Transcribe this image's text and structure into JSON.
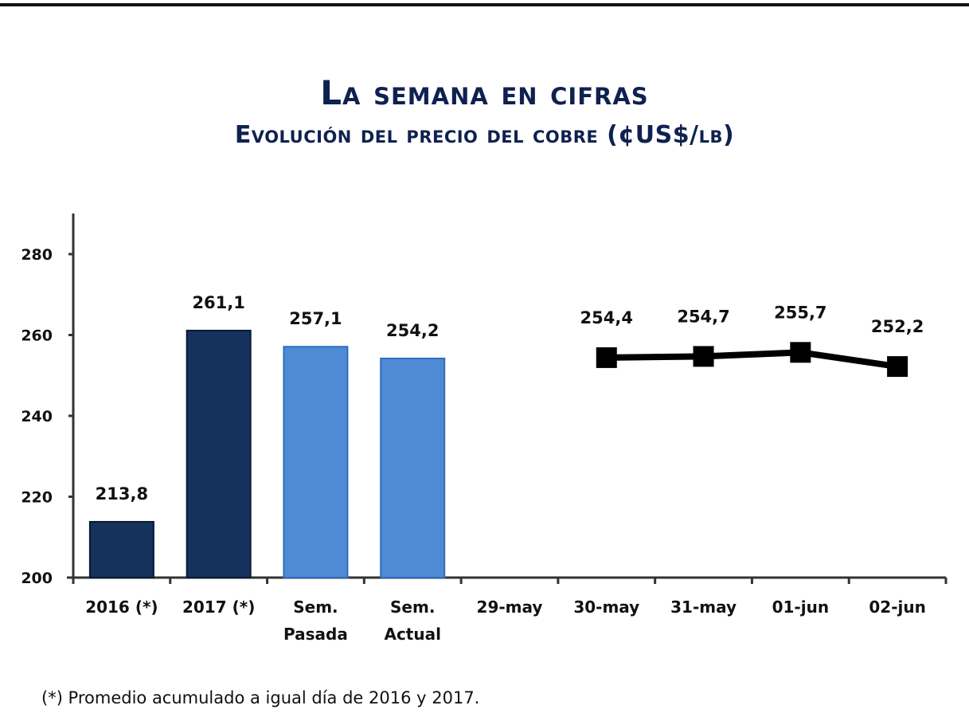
{
  "chart_data": {
    "type": "bar+line",
    "title": "La semana en cifras",
    "subtitle": "Evolución del precio del cobre  (¢US$/lb)",
    "categories": [
      "2016 (*)",
      "2017 (*)",
      "Sem. Pasada",
      "Sem. Actual",
      "29-may",
      "30-may",
      "31-may",
      "01-jun",
      "02-jun"
    ],
    "category_lines": [
      [
        "2016 (*)"
      ],
      [
        "2017 (*)"
      ],
      [
        "Sem.",
        "Pasada"
      ],
      [
        "Sem.",
        "Actual"
      ],
      [
        "29-may"
      ],
      [
        "30-may"
      ],
      [
        "31-may"
      ],
      [
        "01-jun"
      ],
      [
        "02-jun"
      ]
    ],
    "bars": [
      {
        "category": "2016 (*)",
        "value": 213.8,
        "label": "213,8",
        "color": "#14325c"
      },
      {
        "category": "2017 (*)",
        "value": 261.1,
        "label": "261,1",
        "color": "#14325c"
      },
      {
        "category": "Sem. Pasada",
        "value": 257.1,
        "label": "257,1",
        "color": "#4f8ad4"
      },
      {
        "category": "Sem. Actual",
        "value": 254.2,
        "label": "254,2",
        "color": "#4f8ad4"
      }
    ],
    "line": [
      {
        "category": "30-may",
        "value": 254.4,
        "label": "254,4"
      },
      {
        "category": "31-may",
        "value": 254.7,
        "label": "254,7"
      },
      {
        "category": "01-jun",
        "value": 255.7,
        "label": "255,7"
      },
      {
        "category": "02-jun",
        "value": 252.2,
        "label": "252,2"
      }
    ],
    "yticks": [
      200,
      220,
      240,
      260,
      280
    ],
    "ylim": [
      200,
      290
    ],
    "xlabel": "",
    "ylabel": "",
    "grid": false,
    "line_color": "#000000"
  },
  "footnote": "(*) Promedio acumulado a igual día de 2016 y 2017."
}
